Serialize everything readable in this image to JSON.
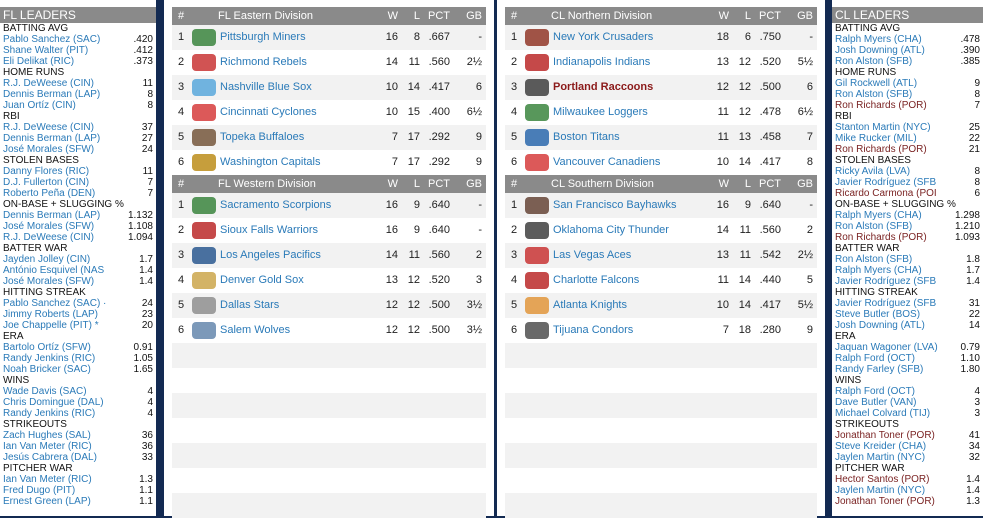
{
  "fl_leaders": {
    "title": "FL LEADERS",
    "categories": [
      {
        "name": "BATTING AVG",
        "rows": [
          [
            "Pablo Sanchez (SAC)",
            ".420"
          ],
          [
            "Shane Walter (PIT)",
            ".412"
          ],
          [
            "Eli Delikat (RIC)",
            ".373"
          ]
        ]
      },
      {
        "name": "HOME RUNS",
        "rows": [
          [
            "R.J. DeWeese (CIN)",
            "11"
          ],
          [
            "Dennis Berman (LAP)",
            "8"
          ],
          [
            "Juan Ortíz (CIN)",
            "8"
          ]
        ]
      },
      {
        "name": "RBI",
        "rows": [
          [
            "R.J. DeWeese (CIN)",
            "37"
          ],
          [
            "Dennis Berman (LAP)",
            "27"
          ],
          [
            "José Morales (SFW)",
            "24"
          ]
        ]
      },
      {
        "name": "STOLEN BASES",
        "rows": [
          [
            "Danny Flores (RIC)",
            "11"
          ],
          [
            "D.J. Fullerton (CIN)",
            "7"
          ],
          [
            "Roberto Peña (DEN)",
            "7"
          ]
        ]
      },
      {
        "name": "ON-BASE + SLUGGING %",
        "rows": [
          [
            "Dennis Berman (LAP)",
            "1.132"
          ],
          [
            "José Morales (SFW)",
            "1.108"
          ],
          [
            "R.J. DeWeese (CIN)",
            "1.094"
          ]
        ]
      },
      {
        "name": "BATTER WAR",
        "rows": [
          [
            "Jayden Jolley (CIN)",
            "1.7"
          ],
          [
            "António Esquivel (NAS",
            "1.4"
          ],
          [
            "José Morales (SFW)",
            "1.4"
          ]
        ]
      },
      {
        "name": "HITTING STREAK",
        "rows": [
          [
            "Pablo Sanchez (SAC) ·",
            "24"
          ],
          [
            "Jimmy Roberts (LAP)",
            "23"
          ],
          [
            "Joe Chappelle (PIT) *",
            "20"
          ]
        ]
      },
      {
        "name": "ERA",
        "rows": [
          [
            "Bartolo Ortíz (SFW)",
            "0.91"
          ],
          [
            "Randy Jenkins (RIC)",
            "1.05"
          ],
          [
            "Noah Bricker (SAC)",
            "1.65"
          ]
        ]
      },
      {
        "name": "WINS",
        "rows": [
          [
            "Wade Davis (SAC)",
            "4"
          ],
          [
            "Chris Domingue (DAL)",
            "4"
          ],
          [
            "Randy Jenkins (RIC)",
            "4"
          ]
        ]
      },
      {
        "name": "STRIKEOUTS",
        "rows": [
          [
            "Zach Hughes (SAL)",
            "36"
          ],
          [
            "Ian Van Meter (RIC)",
            "36"
          ],
          [
            "Jesús Cabrera (DAL)",
            "33"
          ]
        ]
      },
      {
        "name": "PITCHER WAR",
        "rows": [
          [
            "Ian Van Meter (RIC)",
            "1.3"
          ],
          [
            "Fred Dugo (PIT)",
            "1.1"
          ],
          [
            "Ernest Green (LAP)",
            "1.1"
          ]
        ]
      }
    ]
  },
  "cl_leaders": {
    "title": "CL LEADERS",
    "categories": [
      {
        "name": "BATTING AVG",
        "rows": [
          [
            "Ralph Myers (CHA)",
            ".478"
          ],
          [
            "Josh Downing (ATL)",
            ".390"
          ],
          [
            "Ron Alston (SFB)",
            ".385"
          ]
        ]
      },
      {
        "name": "HOME RUNS",
        "rows": [
          [
            "Gil Rockwell (ATL)",
            "9"
          ],
          [
            "Ron Alston (SFB)",
            "8"
          ],
          [
            "Ron Richards (POR)",
            "7"
          ]
        ]
      },
      {
        "name": "RBI",
        "rows": [
          [
            "Stanton Martin (NYC)",
            "25"
          ],
          [
            "Mike Rucker (MIL)",
            "22"
          ],
          [
            "Ron Richards (POR)",
            "21"
          ]
        ]
      },
      {
        "name": "STOLEN BASES",
        "rows": [
          [
            "Ricky Avila (LVA)",
            "8"
          ],
          [
            "Javier Rodríguez (SFB",
            "8"
          ],
          [
            "Ricardo Carmona (POI",
            "6"
          ]
        ]
      },
      {
        "name": "ON-BASE + SLUGGING %",
        "rows": [
          [
            "Ralph Myers (CHA)",
            "1.298"
          ],
          [
            "Ron Alston (SFB)",
            "1.210"
          ],
          [
            "Ron Richards (POR)",
            "1.093"
          ]
        ]
      },
      {
        "name": "BATTER WAR",
        "rows": [
          [
            "Ron Alston (SFB)",
            "1.8"
          ],
          [
            "Ralph Myers (CHA)",
            "1.7"
          ],
          [
            "Javier Rodríguez (SFB",
            "1.4"
          ]
        ]
      },
      {
        "name": "HITTING STREAK",
        "rows": [
          [
            "Javier Rodríguez (SFB",
            "31"
          ],
          [
            "Steve Butler (BOS)",
            "22"
          ],
          [
            "Josh Downing (ATL)",
            "14"
          ]
        ]
      },
      {
        "name": "ERA",
        "rows": [
          [
            "Jaquan Wagoner (LVA)",
            "0.79"
          ],
          [
            "Ralph Ford (OCT)",
            "1.10"
          ],
          [
            "Randy Farley (SFB)",
            "1.80"
          ]
        ]
      },
      {
        "name": "WINS",
        "rows": [
          [
            "Ralph Ford (OCT)",
            "4"
          ],
          [
            "Dave Butler (VAN)",
            "3"
          ],
          [
            "Michael Colvard (TIJ)",
            "3"
          ]
        ]
      },
      {
        "name": "STRIKEOUTS",
        "rows": [
          [
            "Jonathan Toner (POR)",
            "41"
          ],
          [
            "Steve Kreider (CHA)",
            "34"
          ],
          [
            "Jaylen Martin (NYC)",
            "32"
          ]
        ]
      },
      {
        "name": "PITCHER WAR",
        "rows": [
          [
            "Hector Santos (POR)",
            "1.4"
          ],
          [
            "Jaylen Martin (NYC)",
            "1.4"
          ],
          [
            "Jonathan Toner (POR)",
            "1.3"
          ]
        ]
      }
    ]
  },
  "columns": {
    "num": "#",
    "w": "W",
    "l": "L",
    "pct": "PCT",
    "gb": "GB"
  },
  "divisions": [
    {
      "name": "FL Eastern Division",
      "teams": [
        {
          "rank": "1",
          "name": "Pittsburgh Miners",
          "w": "16",
          "l": "8",
          "pct": ".667",
          "gb": "-",
          "logo_color": "#2e7d32"
        },
        {
          "rank": "2",
          "name": "Richmond Rebels",
          "w": "14",
          "l": "11",
          "pct": ".560",
          "gb": "2½",
          "logo_color": "#c62828"
        },
        {
          "rank": "3",
          "name": "Nashville Blue Sox",
          "w": "10",
          "l": "14",
          "pct": ".417",
          "gb": "6",
          "logo_color": "#4fa3d9"
        },
        {
          "rank": "4",
          "name": "Cincinnati Cyclones",
          "w": "10",
          "l": "15",
          "pct": ".400",
          "gb": "6½",
          "logo_color": "#d32f2f"
        },
        {
          "rank": "5",
          "name": "Topeka Buffaloes",
          "w": "7",
          "l": "17",
          "pct": ".292",
          "gb": "9",
          "logo_color": "#6d4c2f"
        },
        {
          "rank": "6",
          "name": "Washington Capitals",
          "w": "7",
          "l": "17",
          "pct": ".292",
          "gb": "9",
          "logo_color": "#b8860b"
        }
      ]
    },
    {
      "name": "FL Western Division",
      "teams": [
        {
          "rank": "1",
          "name": "Sacramento Scorpions",
          "w": "16",
          "l": "9",
          "pct": ".640",
          "gb": "-",
          "logo_color": "#2e7d32"
        },
        {
          "rank": "2",
          "name": "Sioux Falls Warriors",
          "w": "16",
          "l": "9",
          "pct": ".640",
          "gb": "-",
          "logo_color": "#b71c1c"
        },
        {
          "rank": "3",
          "name": "Los Angeles Pacifics",
          "w": "14",
          "l": "11",
          "pct": ".560",
          "gb": "2",
          "logo_color": "#1e4f8a"
        },
        {
          "rank": "4",
          "name": "Denver Gold Sox",
          "w": "13",
          "l": "12",
          "pct": ".520",
          "gb": "3",
          "logo_color": "#c8a040"
        },
        {
          "rank": "5",
          "name": "Dallas Stars",
          "w": "12",
          "l": "12",
          "pct": ".500",
          "gb": "3½",
          "logo_color": "#888888"
        },
        {
          "rank": "6",
          "name": "Salem Wolves",
          "w": "12",
          "l": "12",
          "pct": ".500",
          "gb": "3½",
          "logo_color": "#5b7fa8"
        }
      ]
    },
    {
      "name": "CL Northern Division",
      "teams": [
        {
          "rank": "1",
          "name": "New York Crusaders",
          "w": "18",
          "l": "6",
          "pct": ".750",
          "gb": "-",
          "logo_color": "#8b2b1a"
        },
        {
          "rank": "2",
          "name": "Indianapolis Indians",
          "w": "13",
          "l": "12",
          "pct": ".520",
          "gb": "5½",
          "logo_color": "#b71c1c"
        },
        {
          "rank": "3",
          "name": "Portland Raccoons",
          "w": "12",
          "l": "12",
          "pct": ".500",
          "gb": "6",
          "logo_color": "#333333",
          "own": true
        },
        {
          "rank": "4",
          "name": "Milwaukee Loggers",
          "w": "11",
          "l": "12",
          "pct": ".478",
          "gb": "6½",
          "logo_color": "#2e7d32"
        },
        {
          "rank": "5",
          "name": "Boston Titans",
          "w": "11",
          "l": "13",
          "pct": ".458",
          "gb": "7",
          "logo_color": "#1e5fa8"
        },
        {
          "rank": "6",
          "name": "Vancouver Canadiens",
          "w": "10",
          "l": "14",
          "pct": ".417",
          "gb": "8",
          "logo_color": "#d32f2f"
        }
      ]
    },
    {
      "name": "CL Southern Division",
      "teams": [
        {
          "rank": "1",
          "name": "San Francisco Bayhawks",
          "w": "16",
          "l": "9",
          "pct": ".640",
          "gb": "-",
          "logo_color": "#5d3a2a"
        },
        {
          "rank": "2",
          "name": "Oklahoma City Thunder",
          "w": "14",
          "l": "11",
          "pct": ".560",
          "gb": "2",
          "logo_color": "#333333"
        },
        {
          "rank": "3",
          "name": "Las Vegas Aces",
          "w": "13",
          "l": "11",
          "pct": ".542",
          "gb": "2½",
          "logo_color": "#c62828"
        },
        {
          "rank": "4",
          "name": "Charlotte Falcons",
          "w": "11",
          "l": "14",
          "pct": ".440",
          "gb": "5",
          "logo_color": "#b71c1c"
        },
        {
          "rank": "5",
          "name": "Atlanta Knights",
          "w": "10",
          "l": "14",
          "pct": ".417",
          "gb": "5½",
          "logo_color": "#e09030"
        },
        {
          "rank": "6",
          "name": "Tijuana Condors",
          "w": "7",
          "l": "18",
          "pct": ".280",
          "gb": "9",
          "logo_color": "#444444"
        }
      ]
    }
  ],
  "colors": {
    "link": "#2a7ab8",
    "own_team": "#8b1a1a",
    "header": "#8a8a8a",
    "background": "#132a52"
  }
}
